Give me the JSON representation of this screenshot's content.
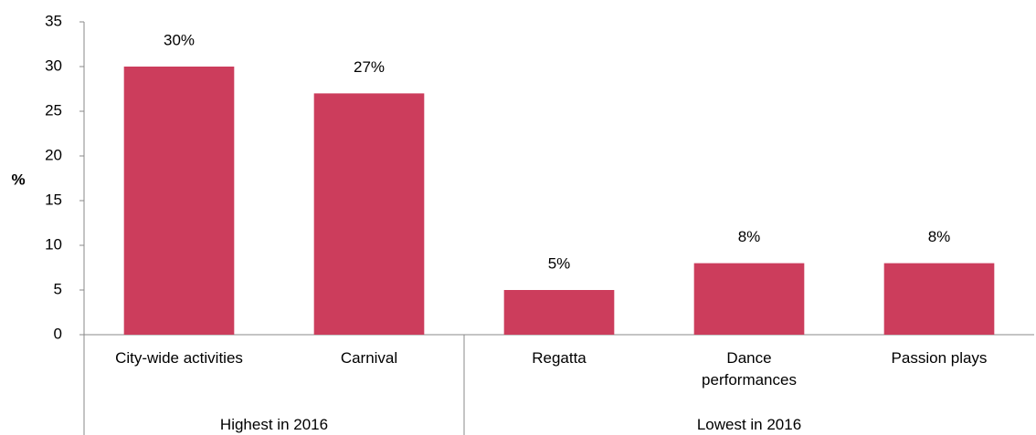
{
  "chart_data": {
    "type": "bar",
    "y_label": "%",
    "categories": [
      "City-wide activities",
      "Carnival",
      "Regatta",
      "Dance performances",
      "Passion plays"
    ],
    "groups": [
      {
        "name": "Highest in 2016",
        "count": 2
      },
      {
        "name": "Lowest in 2016",
        "count": 3
      }
    ],
    "values": [
      30,
      27,
      5,
      8,
      8
    ],
    "value_labels": [
      "30%",
      "27%",
      "5%",
      "8%",
      "8%"
    ],
    "color": "#cc3d5c",
    "ylim": [
      0,
      35
    ],
    "yticks": [
      0,
      5,
      10,
      15,
      20,
      25,
      30,
      35
    ],
    "grid": false
  }
}
